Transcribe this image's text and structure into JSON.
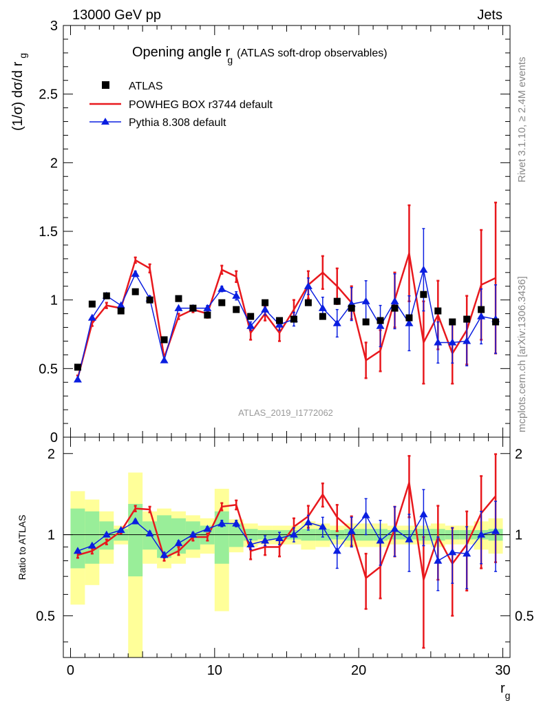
{
  "header": {
    "left": "13000 GeV pp",
    "right": "Jets"
  },
  "side_labels": {
    "rivet": "Rivet 3.1.10, ≥ 2.4M events",
    "mcplots": "mcplots.cern.ch [arXiv:1306.3436]"
  },
  "watermark": "ATLAS_2019_I1772062",
  "colors": {
    "atlas": "#000000",
    "powheg": "#e8181d",
    "pythia": "#0a1ee0",
    "band_inner": "#99ee99",
    "band_outer": "#ffff99"
  },
  "chart_data": [
    {
      "type": "scatter",
      "title_main": "Opening angle r",
      "title_sub": "g",
      "title_tail": "(ATLAS soft-drop observables)",
      "ylabel_main": "(1/σ) dσ/d r",
      "ylabel_sub": "g",
      "xlim": [
        -0.5,
        30.5
      ],
      "ylim": [
        0,
        3
      ],
      "yticks": [
        "0",
        "0.5",
        "1",
        "1.5",
        "2",
        "2.5",
        "3"
      ],
      "legend_position": "top-left",
      "x": [
        0.5,
        1.5,
        2.5,
        3.5,
        4.5,
        5.5,
        6.5,
        7.5,
        8.5,
        9.5,
        10.5,
        11.5,
        12.5,
        13.5,
        14.5,
        15.5,
        16.5,
        17.5,
        18.5,
        19.5,
        20.5,
        21.5,
        22.5,
        23.5,
        24.5,
        25.5,
        26.5,
        27.5,
        28.5,
        29.5
      ],
      "series": [
        {
          "name": "ATLAS",
          "style": "marker",
          "values": [
            0.51,
            0.97,
            1.03,
            0.92,
            1.06,
            1.0,
            0.71,
            1.01,
            0.94,
            0.89,
            0.98,
            0.93,
            0.88,
            0.98,
            0.85,
            0.86,
            0.98,
            0.88,
            0.99,
            0.94,
            0.84,
            0.85,
            0.94,
            0.87,
            1.04,
            0.92,
            0.84,
            0.86,
            0.93,
            0.84
          ]
        },
        {
          "name": "POWHEG BOX r3744 default",
          "style": "line",
          "values": [
            0.43,
            0.83,
            0.96,
            0.94,
            1.29,
            1.23,
            0.58,
            0.88,
            0.93,
            0.9,
            1.22,
            1.17,
            0.76,
            0.9,
            0.76,
            0.93,
            1.11,
            1.2,
            1.1,
            0.98,
            0.56,
            0.63,
            1.0,
            1.34,
            0.69,
            0.89,
            0.61,
            0.78,
            1.11,
            1.16
          ],
          "errors": [
            0.02,
            0.02,
            0.02,
            0.02,
            0.02,
            0.03,
            0.02,
            0.02,
            0.02,
            0.03,
            0.03,
            0.04,
            0.05,
            0.05,
            0.06,
            0.07,
            0.1,
            0.12,
            0.13,
            0.12,
            0.13,
            0.15,
            0.2,
            0.35,
            0.3,
            0.25,
            0.22,
            0.25,
            0.4,
            0.55
          ]
        },
        {
          "name": "Pythia 8.308 default",
          "style": "line-marker",
          "values": [
            0.42,
            0.87,
            1.03,
            0.96,
            1.19,
            1.01,
            0.56,
            0.94,
            0.94,
            0.94,
            1.08,
            1.03,
            0.81,
            0.93,
            0.82,
            0.86,
            1.1,
            0.94,
            0.83,
            0.97,
            0.99,
            0.81,
            0.99,
            0.83,
            1.22,
            0.69,
            0.69,
            0.7,
            0.88,
            0.86
          ],
          "errors": [
            0.01,
            0.01,
            0.01,
            0.01,
            0.02,
            0.02,
            0.01,
            0.01,
            0.02,
            0.02,
            0.02,
            0.03,
            0.03,
            0.04,
            0.04,
            0.05,
            0.06,
            0.08,
            0.1,
            0.12,
            0.15,
            0.15,
            0.2,
            0.2,
            0.3,
            0.15,
            0.15,
            0.18,
            0.2,
            0.25
          ]
        }
      ]
    },
    {
      "type": "scatter",
      "ylabel": "Ratio to ATLAS",
      "xlabel_main": "r",
      "xlabel_sub": "g",
      "xlim": [
        -0.5,
        30.5
      ],
      "ylim": [
        0.35,
        2.3
      ],
      "yscale": "log",
      "xticks": [
        "0",
        "10",
        "20",
        "30"
      ],
      "yticks": [
        "0.5",
        "1",
        "2"
      ],
      "reference_line": 1,
      "x": [
        0.5,
        1.5,
        2.5,
        3.5,
        4.5,
        5.5,
        6.5,
        7.5,
        8.5,
        9.5,
        10.5,
        11.5,
        12.5,
        13.5,
        14.5,
        15.5,
        16.5,
        17.5,
        18.5,
        19.5,
        20.5,
        21.5,
        22.5,
        23.5,
        24.5,
        25.5,
        26.5,
        27.5,
        28.5,
        29.5
      ],
      "band_inner": [
        0.25,
        0.22,
        0.12,
        0.05,
        0.3,
        0.12,
        0.18,
        0.15,
        0.12,
        0.08,
        0.22,
        0.1,
        0.05,
        0.04,
        0.04,
        0.04,
        0.05,
        0.05,
        0.04,
        0.05,
        0.05,
        0.05,
        0.04,
        0.04,
        0.05,
        0.05,
        0.04,
        0.04,
        0.04,
        0.05
      ],
      "band_outer": [
        0.45,
        0.35,
        0.22,
        0.08,
        0.7,
        0.22,
        0.25,
        0.22,
        0.18,
        0.15,
        0.48,
        0.14,
        0.1,
        0.08,
        0.08,
        0.08,
        0.12,
        0.1,
        0.08,
        0.1,
        0.1,
        0.1,
        0.08,
        0.08,
        0.08,
        0.1,
        0.08,
        0.08,
        0.12,
        0.15
      ],
      "series": [
        {
          "name": "POWHEG BOX r3744 default",
          "style": "line",
          "values": [
            0.84,
            0.87,
            0.94,
            1.03,
            1.25,
            1.24,
            0.82,
            0.87,
            0.98,
            0.98,
            1.27,
            1.29,
            0.87,
            0.9,
            0.9,
            1.07,
            1.17,
            1.41,
            1.16,
            1.04,
            0.69,
            0.76,
            1.05,
            1.56,
            0.68,
            0.98,
            0.78,
            0.92,
            1.2,
            1.39
          ],
          "errors": [
            0.02,
            0.02,
            0.02,
            0.02,
            0.03,
            0.03,
            0.02,
            0.03,
            0.03,
            0.03,
            0.04,
            0.05,
            0.06,
            0.06,
            0.07,
            0.08,
            0.11,
            0.14,
            0.13,
            0.13,
            0.16,
            0.18,
            0.22,
            0.4,
            0.3,
            0.3,
            0.28,
            0.3,
            0.45,
            0.6
          ]
        },
        {
          "name": "Pythia 8.308 default",
          "style": "line-marker",
          "values": [
            0.87,
            0.91,
            1.0,
            1.04,
            1.12,
            1.01,
            0.84,
            0.93,
            1.0,
            1.05,
            1.1,
            1.1,
            0.92,
            0.95,
            0.97,
            1.0,
            1.11,
            1.07,
            0.87,
            1.03,
            1.18,
            0.95,
            1.05,
            0.96,
            1.19,
            0.8,
            0.86,
            0.85,
            1.0,
            1.03
          ],
          "errors": [
            0.01,
            0.01,
            0.01,
            0.01,
            0.02,
            0.02,
            0.02,
            0.02,
            0.02,
            0.02,
            0.03,
            0.03,
            0.04,
            0.04,
            0.05,
            0.06,
            0.07,
            0.09,
            0.12,
            0.13,
            0.18,
            0.18,
            0.22,
            0.23,
            0.28,
            0.18,
            0.2,
            0.22,
            0.22,
            0.3
          ]
        }
      ]
    }
  ]
}
